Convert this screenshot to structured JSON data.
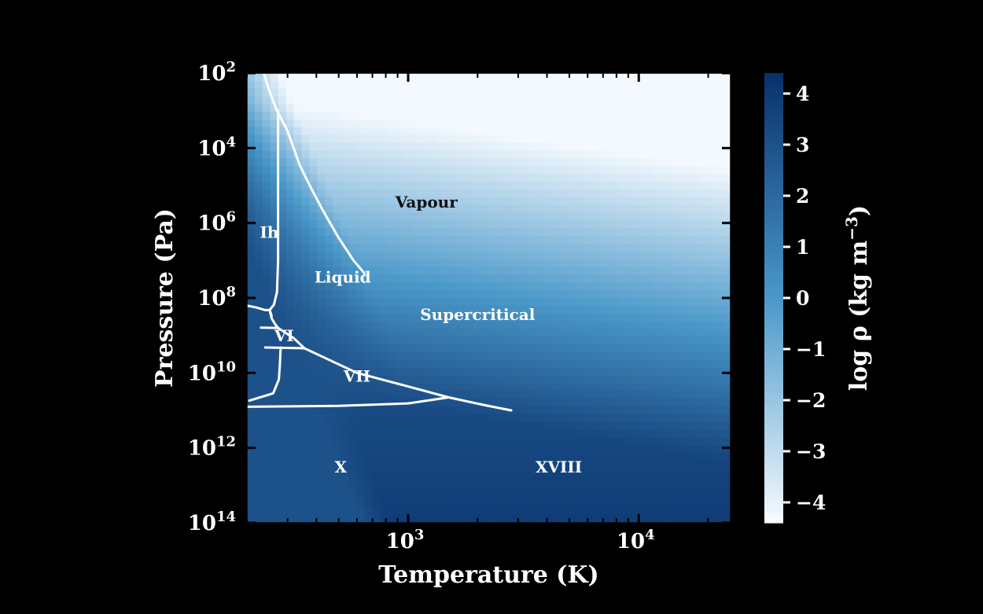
{
  "chart_data": {
    "type": "heatmap",
    "title": "",
    "xlabel": "Temperature (K)",
    "ylabel": "Pressure (Pa)",
    "x_scale": "log",
    "y_scale": "log",
    "xlim": [
      200,
      25000
    ],
    "ylim": [
      100,
      100000000000000.0
    ],
    "x_ticks": [
      {
        "value": 1000,
        "label_base": "10",
        "label_exp": "3"
      },
      {
        "value": 10000,
        "label_base": "10",
        "label_exp": "4"
      }
    ],
    "y_ticks": [
      {
        "value": 100.0,
        "label_base": "10",
        "label_exp": "2"
      },
      {
        "value": 10000.0,
        "label_base": "10",
        "label_exp": "4"
      },
      {
        "value": 1000000.0,
        "label_base": "10",
        "label_exp": "6"
      },
      {
        "value": 100000000.0,
        "label_base": "10",
        "label_exp": "8"
      },
      {
        "value": 10000000000.0,
        "label_base": "10",
        "label_exp": "10"
      },
      {
        "value": 1000000000000.0,
        "label_base": "10",
        "label_exp": "12"
      },
      {
        "value": 100000000000000.0,
        "label_base": "10",
        "label_exp": "14"
      }
    ],
    "colorbar": {
      "label": "log ρ (kg m−3)",
      "label_main": "log ρ (kg m",
      "label_exp": "−3",
      "label_close": ")",
      "range": [
        -4.4,
        4.4
      ],
      "ticks": [
        {
          "value": 4,
          "label": "4"
        },
        {
          "value": 3,
          "label": "3"
        },
        {
          "value": 2,
          "label": "2"
        },
        {
          "value": 1,
          "label": "1"
        },
        {
          "value": 0,
          "label": "0"
        },
        {
          "value": -1,
          "label": "−1"
        },
        {
          "value": -2,
          "label": "−2"
        },
        {
          "value": -3,
          "label": "−3"
        },
        {
          "value": -4,
          "label": "−4"
        }
      ],
      "color_low": "#f7fbff",
      "color_mid": "#4a98c9",
      "color_high": "#08306b"
    },
    "regions": [
      {
        "name": "Vapour",
        "T": 1200,
        "P": 300000.0,
        "color": "#111111"
      },
      {
        "name": "Ih",
        "T": 250,
        "P": 1900000.0,
        "color": "#ffffff"
      },
      {
        "name": "Liquid",
        "T": 520,
        "P": 30000000.0,
        "color": "#ffffff"
      },
      {
        "name": "Supercritical",
        "T": 2000,
        "P": 300000000.0,
        "color": "#ffffff"
      },
      {
        "name": "VI",
        "T": 290,
        "P": 1100000000.0,
        "color": "#ffffff"
      },
      {
        "name": "VII",
        "T": 600,
        "P": 13000000000.0,
        "color": "#ffffff"
      },
      {
        "name": "X",
        "T": 510,
        "P": 3500000000000.0,
        "color": "#ffffff"
      },
      {
        "name": "XVIII",
        "T": 4500,
        "P": 3500000000000.0,
        "color": "#ffffff"
      }
    ],
    "phase_boundaries": [
      {
        "name": "vaporization-curve",
        "points": [
          [
            237,
            100
          ],
          [
            250,
            300.0
          ],
          [
            270,
            1000.0
          ],
          [
            300,
            3500.0
          ],
          [
            340,
            30000.0
          ],
          [
            380,
            120000.0
          ],
          [
            430,
            500000.0
          ],
          [
            500,
            2500000.0
          ],
          [
            580,
            10000000.0
          ],
          [
            647,
            22000000.0
          ]
        ]
      },
      {
        "name": "melting-curve-ih",
        "points": [
          [
            273,
            1000.0
          ],
          [
            273,
            100000.0
          ],
          [
            273,
            10000000.0
          ],
          [
            270,
            70000000.0
          ],
          [
            262,
            150000000.0
          ],
          [
            251,
            210000000.0
          ]
        ]
      },
      {
        "name": "ice-iii-v-left",
        "points": [
          [
            200,
            160000000.0
          ],
          [
            220,
            180000000.0
          ],
          [
            240,
            210000000.0
          ],
          [
            251,
            210000000.0
          ]
        ]
      },
      {
        "name": "ice-v-boundary",
        "points": [
          [
            251,
            210000000.0
          ],
          [
            256,
            350000000.0
          ],
          [
            265,
            500000000.0
          ],
          [
            273,
            630000000.0
          ]
        ]
      },
      {
        "name": "ice-iii-liquid",
        "points": [
          [
            251,
            210000000.0
          ],
          [
            256,
            300000000.0
          ]
        ]
      },
      {
        "name": "ice-vi-top",
        "points": [
          [
            230,
            620000000.0
          ],
          [
            273,
            630000000.0
          ]
        ]
      },
      {
        "name": "liquid-vi",
        "points": [
          [
            273,
            630000000.0
          ],
          [
            320,
            1200000000.0
          ],
          [
            355,
            2200000000.0
          ]
        ]
      },
      {
        "name": "ice-vi-vii",
        "points": [
          [
            240,
            2100000000.0
          ],
          [
            355,
            2200000000.0
          ]
        ]
      },
      {
        "name": "vi-vii-left-vertical",
        "points": [
          [
            280,
            2100000000.0
          ],
          [
            278,
            6000000000.0
          ],
          [
            275,
            15000000000.0
          ],
          [
            260,
            35000000000.0
          ],
          [
            205,
            55000000000.0
          ]
        ]
      },
      {
        "name": "liquid-vii-melting",
        "points": [
          [
            355,
            2200000000.0
          ],
          [
            600,
            10000000000.0
          ],
          [
            1000,
            23000000000.0
          ],
          [
            1500,
            45000000000.0
          ],
          [
            2200,
            75000000000.0
          ],
          [
            2800,
            100000000000.0
          ]
        ]
      },
      {
        "name": "vii-x-boundary",
        "points": [
          [
            200,
            80000000000.0
          ],
          [
            500,
            76000000000.0
          ],
          [
            1000,
            65000000000.0
          ],
          [
            1500,
            45000000000.0
          ]
        ]
      }
    ]
  }
}
